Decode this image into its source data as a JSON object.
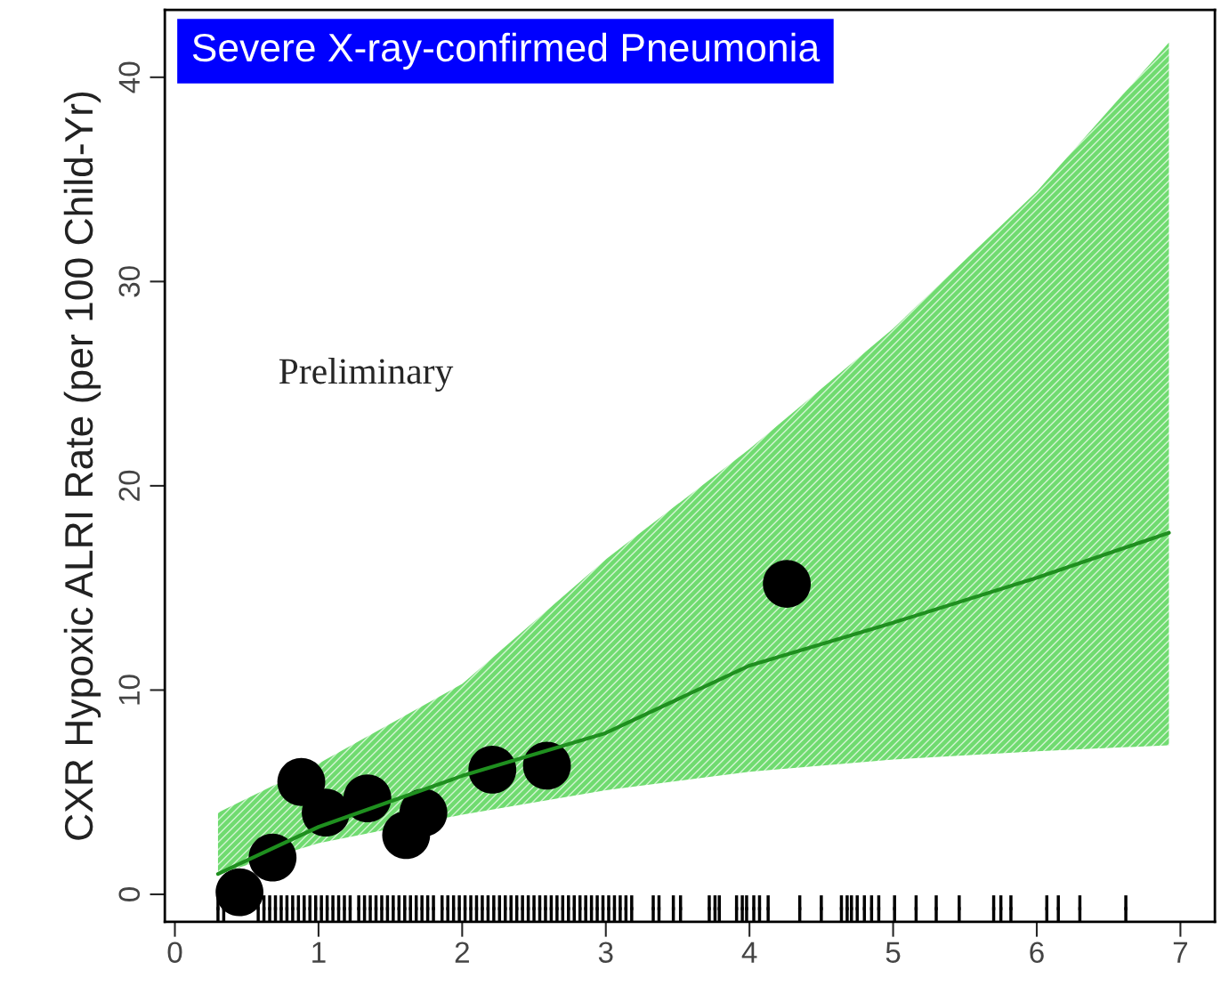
{
  "chart_data": {
    "type": "scatter",
    "title": "Severe X-ray-confirmed Pneumonia",
    "ylabel": "CXR Hypoxic ALRI Rate (per 100 Child-Yr)",
    "xlim": [
      -0.07,
      7.24
    ],
    "ylim": [
      -1.35,
      43.3
    ],
    "xticks": [
      0,
      1,
      2,
      3,
      4,
      5,
      6,
      7
    ],
    "yticks": [
      0,
      10,
      20,
      30,
      40
    ],
    "grid": false,
    "marker": "circle",
    "annotations": [
      "Preliminary"
    ],
    "series": [
      {
        "type": "line",
        "marker": "none",
        "color": "#1f8f1f",
        "x": [
          0.3,
          1,
          2,
          3,
          4,
          5,
          6,
          6.92
        ],
        "values": [
          1.0,
          3.3,
          5.8,
          7.9,
          11.2,
          13.3,
          15.5,
          17.7
        ],
        "lower": [
          1.0,
          2.5,
          3.9,
          5.1,
          6.0,
          6.6,
          7.0,
          7.3
        ],
        "upper": [
          4.0,
          6.4,
          10.3,
          16.4,
          21.8,
          27.7,
          34.4,
          41.7
        ]
      },
      {
        "color": "#000000",
        "x": [
          0.45,
          0.68,
          0.88,
          1.05,
          1.34,
          1.61,
          1.73,
          2.21,
          2.59,
          4.26
        ],
        "values": [
          0.1,
          1.8,
          5.5,
          4.0,
          4.7,
          2.9,
          4.0,
          6.1,
          6.3,
          15.2
        ]
      },
      {
        "marker": "square",
        "color": "#000000",
        "errors": [
          0.65,
          0.65,
          null,
          null,
          null,
          null,
          null,
          0.65,
          0.65,
          0.65,
          0.65,
          0.65,
          0.65,
          0.65,
          0.65,
          0.65,
          0.65,
          0.65,
          0.65,
          0.65,
          0.65,
          0.65,
          0.65,
          0.65,
          0.65,
          0.65,
          0.65,
          0.65,
          0.65,
          0.65,
          0.65,
          0.65,
          0.65,
          0.65,
          0.65,
          0.65,
          0.65,
          0.65,
          0.65,
          0.65,
          0.65,
          0.65,
          0.65,
          0.65,
          0.65,
          0.65,
          0.65,
          0.65,
          0.65,
          0.65,
          0.65,
          0.65,
          0.65,
          0.65,
          0.65,
          0.65,
          0.65,
          0.65,
          0.65,
          0.65,
          0.65,
          0.65,
          0.65,
          0.65,
          0.65,
          0.65,
          0.65,
          0.65,
          0.65,
          0.65,
          0.65,
          0.65,
          0.65,
          0.65,
          0.65,
          0.65,
          0.65,
          0.65,
          0.65,
          0.65,
          0.65,
          0.65,
          0.65,
          0.65,
          0.65,
          0.65,
          0.65,
          0.65,
          0.65,
          0.65,
          0.65,
          0.65,
          0.65,
          0.65,
          0.65,
          0.65,
          0.65,
          0.65,
          0.65,
          0.65,
          0.65,
          0.65,
          0.65,
          0.65,
          0.65
        ],
        "values": [
          -0.7,
          -0.7,
          null,
          null,
          null,
          null,
          null,
          -0.7,
          -0.7,
          -0.7,
          -0.7,
          -0.7,
          -0.7,
          -0.7,
          -0.7,
          -0.7,
          -0.7,
          -0.7,
          -0.7,
          -0.7,
          -0.7,
          -0.7,
          -0.7,
          -0.7,
          -0.7,
          -0.7,
          -0.7,
          -0.7,
          -0.7,
          -0.7,
          -0.7,
          -0.7,
          -0.7,
          -0.7,
          -0.7,
          -0.7,
          -0.7,
          -0.7,
          -0.7,
          -0.7,
          -0.7,
          -0.7,
          -0.7,
          -0.7,
          -0.7,
          -0.7,
          -0.7,
          -0.7,
          -0.7,
          -0.7,
          -0.7,
          -0.7,
          -0.7,
          -0.7,
          -0.7,
          -0.7,
          -0.7,
          -0.7,
          -0.7,
          -0.7,
          -0.7,
          -0.7,
          -0.7,
          -0.7,
          -0.7,
          -0.7,
          -0.7,
          -0.7,
          -0.7,
          -0.7,
          -0.7,
          -0.7,
          -0.7,
          -0.7,
          -0.7,
          -0.7,
          -0.7,
          -0.7,
          -0.7,
          -0.7,
          -0.7,
          -0.7,
          -0.7,
          -0.7,
          -0.7,
          -0.7,
          -0.7,
          -0.7,
          -0.7,
          -0.7,
          -0.7,
          -0.7,
          -0.7,
          -0.7,
          -0.7,
          -0.7,
          -0.7,
          -0.7,
          -0.7,
          -0.7,
          -0.7,
          -0.7,
          -0.7,
          -0.7,
          -0.7
        ],
        "x": [
          0.3,
          0.34,
          0.38,
          0.42,
          0.46,
          0.5,
          0.54,
          0.58,
          0.62,
          0.66,
          0.7,
          0.74,
          0.78,
          0.82,
          0.86,
          0.9,
          0.94,
          0.98,
          1.02,
          1.06,
          1.1,
          1.14,
          1.18,
          1.22,
          1.28,
          1.32,
          1.36,
          1.4,
          1.44,
          1.48,
          1.52,
          1.56,
          1.6,
          1.64,
          1.68,
          1.72,
          1.76,
          1.8,
          1.86,
          1.9,
          1.94,
          1.98,
          2.02,
          2.06,
          2.1,
          2.14,
          2.18,
          2.22,
          2.26,
          2.3,
          2.34,
          2.38,
          2.42,
          2.46,
          2.5,
          2.54,
          2.58,
          2.62,
          2.66,
          2.7,
          2.74,
          2.78,
          2.82,
          2.86,
          2.9,
          2.94,
          2.98,
          3.02,
          3.06,
          3.1,
          3.14,
          3.18,
          3.33,
          3.37,
          3.47,
          3.52,
          3.72,
          3.76,
          3.79,
          3.91,
          3.95,
          3.98,
          4.03,
          4.07,
          4.13,
          4.35,
          4.5,
          4.64,
          4.68,
          4.71,
          4.75,
          4.8,
          4.85,
          4.9,
          5.01,
          5.16,
          5.3,
          5.46,
          5.7,
          5.75,
          5.82,
          6.07,
          6.15,
          6.3,
          6.62
        ]
      }
    ]
  }
}
